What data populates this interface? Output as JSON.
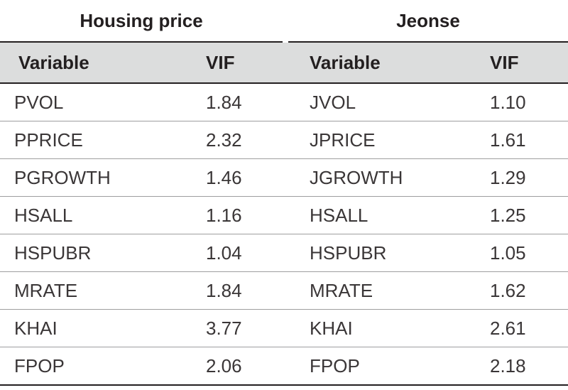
{
  "groups": {
    "left_title": "Housing price",
    "right_title": "Jeonse"
  },
  "columns": {
    "variable": "Variable",
    "vif": "VIF"
  },
  "rows": [
    {
      "left_var": "PVOL",
      "left_vif": "1.84",
      "right_var": "JVOL",
      "right_vif": "1.10"
    },
    {
      "left_var": "PPRICE",
      "left_vif": "2.32",
      "right_var": "JPRICE",
      "right_vif": "1.61"
    },
    {
      "left_var": "PGROWTH",
      "left_vif": "1.46",
      "right_var": "JGROWTH",
      "right_vif": "1.29"
    },
    {
      "left_var": "HSALL",
      "left_vif": "1.16",
      "right_var": "HSALL",
      "right_vif": "1.25"
    },
    {
      "left_var": "HSPUBR",
      "left_vif": "1.04",
      "right_var": "HSPUBR",
      "right_vif": "1.05"
    },
    {
      "left_var": "MRATE",
      "left_vif": "1.84",
      "right_var": "MRATE",
      "right_vif": "1.62"
    },
    {
      "left_var": "KHAI",
      "left_vif": "3.77",
      "right_var": "KHAI",
      "right_vif": "2.61"
    },
    {
      "left_var": "FPOP",
      "left_vif": "2.06",
      "right_var": "FPOP",
      "right_vif": "2.18"
    }
  ]
}
